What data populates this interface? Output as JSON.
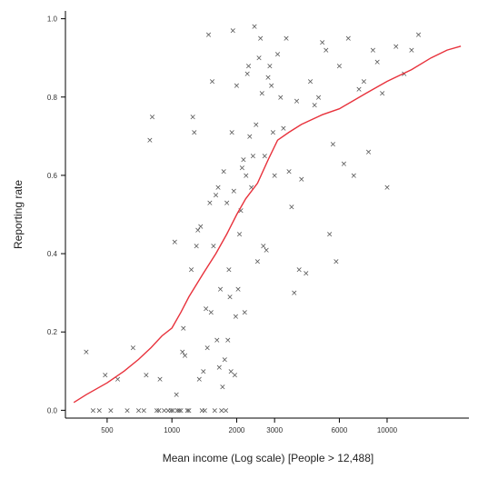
{
  "chart_data": {
    "type": "scatter",
    "title": "",
    "xlabel": "Mean income (Log scale) [People > 12,488]",
    "ylabel": "Reporting rate",
    "x_scale": "log",
    "xlim": [
      320,
      24000
    ],
    "ylim": [
      -0.02,
      1.02
    ],
    "x_ticks": [
      {
        "value": 500,
        "label": "500"
      },
      {
        "value": 1000,
        "label": "1000"
      },
      {
        "value": 2000,
        "label": "2000"
      },
      {
        "value": 3000,
        "label": "3000"
      },
      {
        "value": 6000,
        "label": "6000"
      },
      {
        "value": 10000,
        "label": "10000"
      }
    ],
    "y_ticks": [
      {
        "value": 0.0,
        "label": "0.0"
      },
      {
        "value": 0.2,
        "label": "0.2"
      },
      {
        "value": 0.4,
        "label": "0.4"
      },
      {
        "value": 0.6,
        "label": "0.6"
      },
      {
        "value": 0.8,
        "label": "0.8"
      },
      {
        "value": 1.0,
        "label": "1.0"
      }
    ],
    "grid": false,
    "legend": "none",
    "marker": "×",
    "colors": {
      "points": "#555555",
      "trend": "#e8323c",
      "axis": "#000000"
    },
    "series": [
      {
        "type": "scatter",
        "points": [
          [
            400,
            0.15
          ],
          [
            430,
            0.0
          ],
          [
            460,
            0.0
          ],
          [
            490,
            0.09
          ],
          [
            520,
            0.0
          ],
          [
            560,
            0.08
          ],
          [
            620,
            0.0
          ],
          [
            660,
            0.16
          ],
          [
            700,
            0.0
          ],
          [
            740,
            0.0
          ],
          [
            760,
            0.09
          ],
          [
            790,
            0.69
          ],
          [
            810,
            0.75
          ],
          [
            850,
            0.0
          ],
          [
            870,
            0.0
          ],
          [
            880,
            0.08
          ],
          [
            920,
            0.0
          ],
          [
            960,
            0.0
          ],
          [
            990,
            0.0
          ],
          [
            1010,
            0.0
          ],
          [
            1030,
            0.43
          ],
          [
            1050,
            0.04
          ],
          [
            1060,
            0.0
          ],
          [
            1080,
            0.0
          ],
          [
            1100,
            0.0
          ],
          [
            1120,
            0.15
          ],
          [
            1130,
            0.21
          ],
          [
            1150,
            0.14
          ],
          [
            1180,
            0.0
          ],
          [
            1200,
            0.0
          ],
          [
            1230,
            0.36
          ],
          [
            1250,
            0.75
          ],
          [
            1270,
            0.71
          ],
          [
            1300,
            0.42
          ],
          [
            1320,
            0.46
          ],
          [
            1340,
            0.08
          ],
          [
            1360,
            0.47
          ],
          [
            1380,
            0.0
          ],
          [
            1400,
            0.1
          ],
          [
            1420,
            0.0
          ],
          [
            1440,
            0.26
          ],
          [
            1460,
            0.16
          ],
          [
            1480,
            0.96
          ],
          [
            1500,
            0.53
          ],
          [
            1520,
            0.25
          ],
          [
            1540,
            0.84
          ],
          [
            1560,
            0.42
          ],
          [
            1580,
            0.0
          ],
          [
            1600,
            0.55
          ],
          [
            1620,
            0.18
          ],
          [
            1640,
            0.57
          ],
          [
            1660,
            0.11
          ],
          [
            1680,
            0.31
          ],
          [
            1700,
            0.0
          ],
          [
            1720,
            0.06
          ],
          [
            1740,
            0.61
          ],
          [
            1760,
            0.13
          ],
          [
            1780,
            0.0
          ],
          [
            1800,
            0.53
          ],
          [
            1820,
            0.18
          ],
          [
            1840,
            0.36
          ],
          [
            1860,
            0.29
          ],
          [
            1880,
            0.1
          ],
          [
            1900,
            0.71
          ],
          [
            1920,
            0.97
          ],
          [
            1940,
            0.56
          ],
          [
            1960,
            0.09
          ],
          [
            1980,
            0.24
          ],
          [
            2000,
            0.83
          ],
          [
            2030,
            0.31
          ],
          [
            2060,
            0.45
          ],
          [
            2090,
            0.51
          ],
          [
            2120,
            0.62
          ],
          [
            2150,
            0.64
          ],
          [
            2180,
            0.25
          ],
          [
            2210,
            0.6
          ],
          [
            2240,
            0.86
          ],
          [
            2270,
            0.88
          ],
          [
            2300,
            0.7
          ],
          [
            2340,
            0.57
          ],
          [
            2380,
            0.65
          ],
          [
            2420,
            0.98
          ],
          [
            2460,
            0.73
          ],
          [
            2500,
            0.38
          ],
          [
            2540,
            0.9
          ],
          [
            2580,
            0.95
          ],
          [
            2620,
            0.81
          ],
          [
            2660,
            0.42
          ],
          [
            2700,
            0.65
          ],
          [
            2750,
            0.41
          ],
          [
            2800,
            0.85
          ],
          [
            2850,
            0.88
          ],
          [
            2900,
            0.83
          ],
          [
            2950,
            0.71
          ],
          [
            3000,
            0.6
          ],
          [
            3100,
            0.91
          ],
          [
            3200,
            0.8
          ],
          [
            3300,
            0.72
          ],
          [
            3400,
            0.95
          ],
          [
            3500,
            0.61
          ],
          [
            3600,
            0.52
          ],
          [
            3700,
            0.3
          ],
          [
            3800,
            0.79
          ],
          [
            3900,
            0.36
          ],
          [
            4000,
            0.59
          ],
          [
            4200,
            0.35
          ],
          [
            4400,
            0.84
          ],
          [
            4600,
            0.78
          ],
          [
            4800,
            0.8
          ],
          [
            5000,
            0.94
          ],
          [
            5200,
            0.92
          ],
          [
            5400,
            0.45
          ],
          [
            5600,
            0.68
          ],
          [
            5800,
            0.38
          ],
          [
            6000,
            0.88
          ],
          [
            6300,
            0.63
          ],
          [
            6600,
            0.95
          ],
          [
            7000,
            0.6
          ],
          [
            7400,
            0.82
          ],
          [
            7800,
            0.84
          ],
          [
            8200,
            0.66
          ],
          [
            8600,
            0.92
          ],
          [
            9000,
            0.89
          ],
          [
            9500,
            0.81
          ],
          [
            10000,
            0.57
          ],
          [
            11000,
            0.93
          ],
          [
            12000,
            0.86
          ],
          [
            13000,
            0.92
          ],
          [
            14000,
            0.96
          ]
        ]
      },
      {
        "type": "line",
        "name": "",
        "points": [
          [
            350,
            0.02
          ],
          [
            400,
            0.04
          ],
          [
            500,
            0.07
          ],
          [
            600,
            0.1
          ],
          [
            700,
            0.13
          ],
          [
            800,
            0.16
          ],
          [
            900,
            0.19
          ],
          [
            1000,
            0.21
          ],
          [
            1100,
            0.25
          ],
          [
            1200,
            0.29
          ],
          [
            1400,
            0.35
          ],
          [
            1600,
            0.4
          ],
          [
            1800,
            0.45
          ],
          [
            2000,
            0.5
          ],
          [
            2200,
            0.54
          ],
          [
            2500,
            0.58
          ],
          [
            2800,
            0.64
          ],
          [
            3100,
            0.69
          ],
          [
            3500,
            0.71
          ],
          [
            4000,
            0.73
          ],
          [
            5000,
            0.755
          ],
          [
            6000,
            0.77
          ],
          [
            8000,
            0.81
          ],
          [
            10000,
            0.84
          ],
          [
            13000,
            0.87
          ],
          [
            16000,
            0.9
          ],
          [
            19000,
            0.92
          ],
          [
            22000,
            0.93
          ]
        ]
      }
    ]
  }
}
